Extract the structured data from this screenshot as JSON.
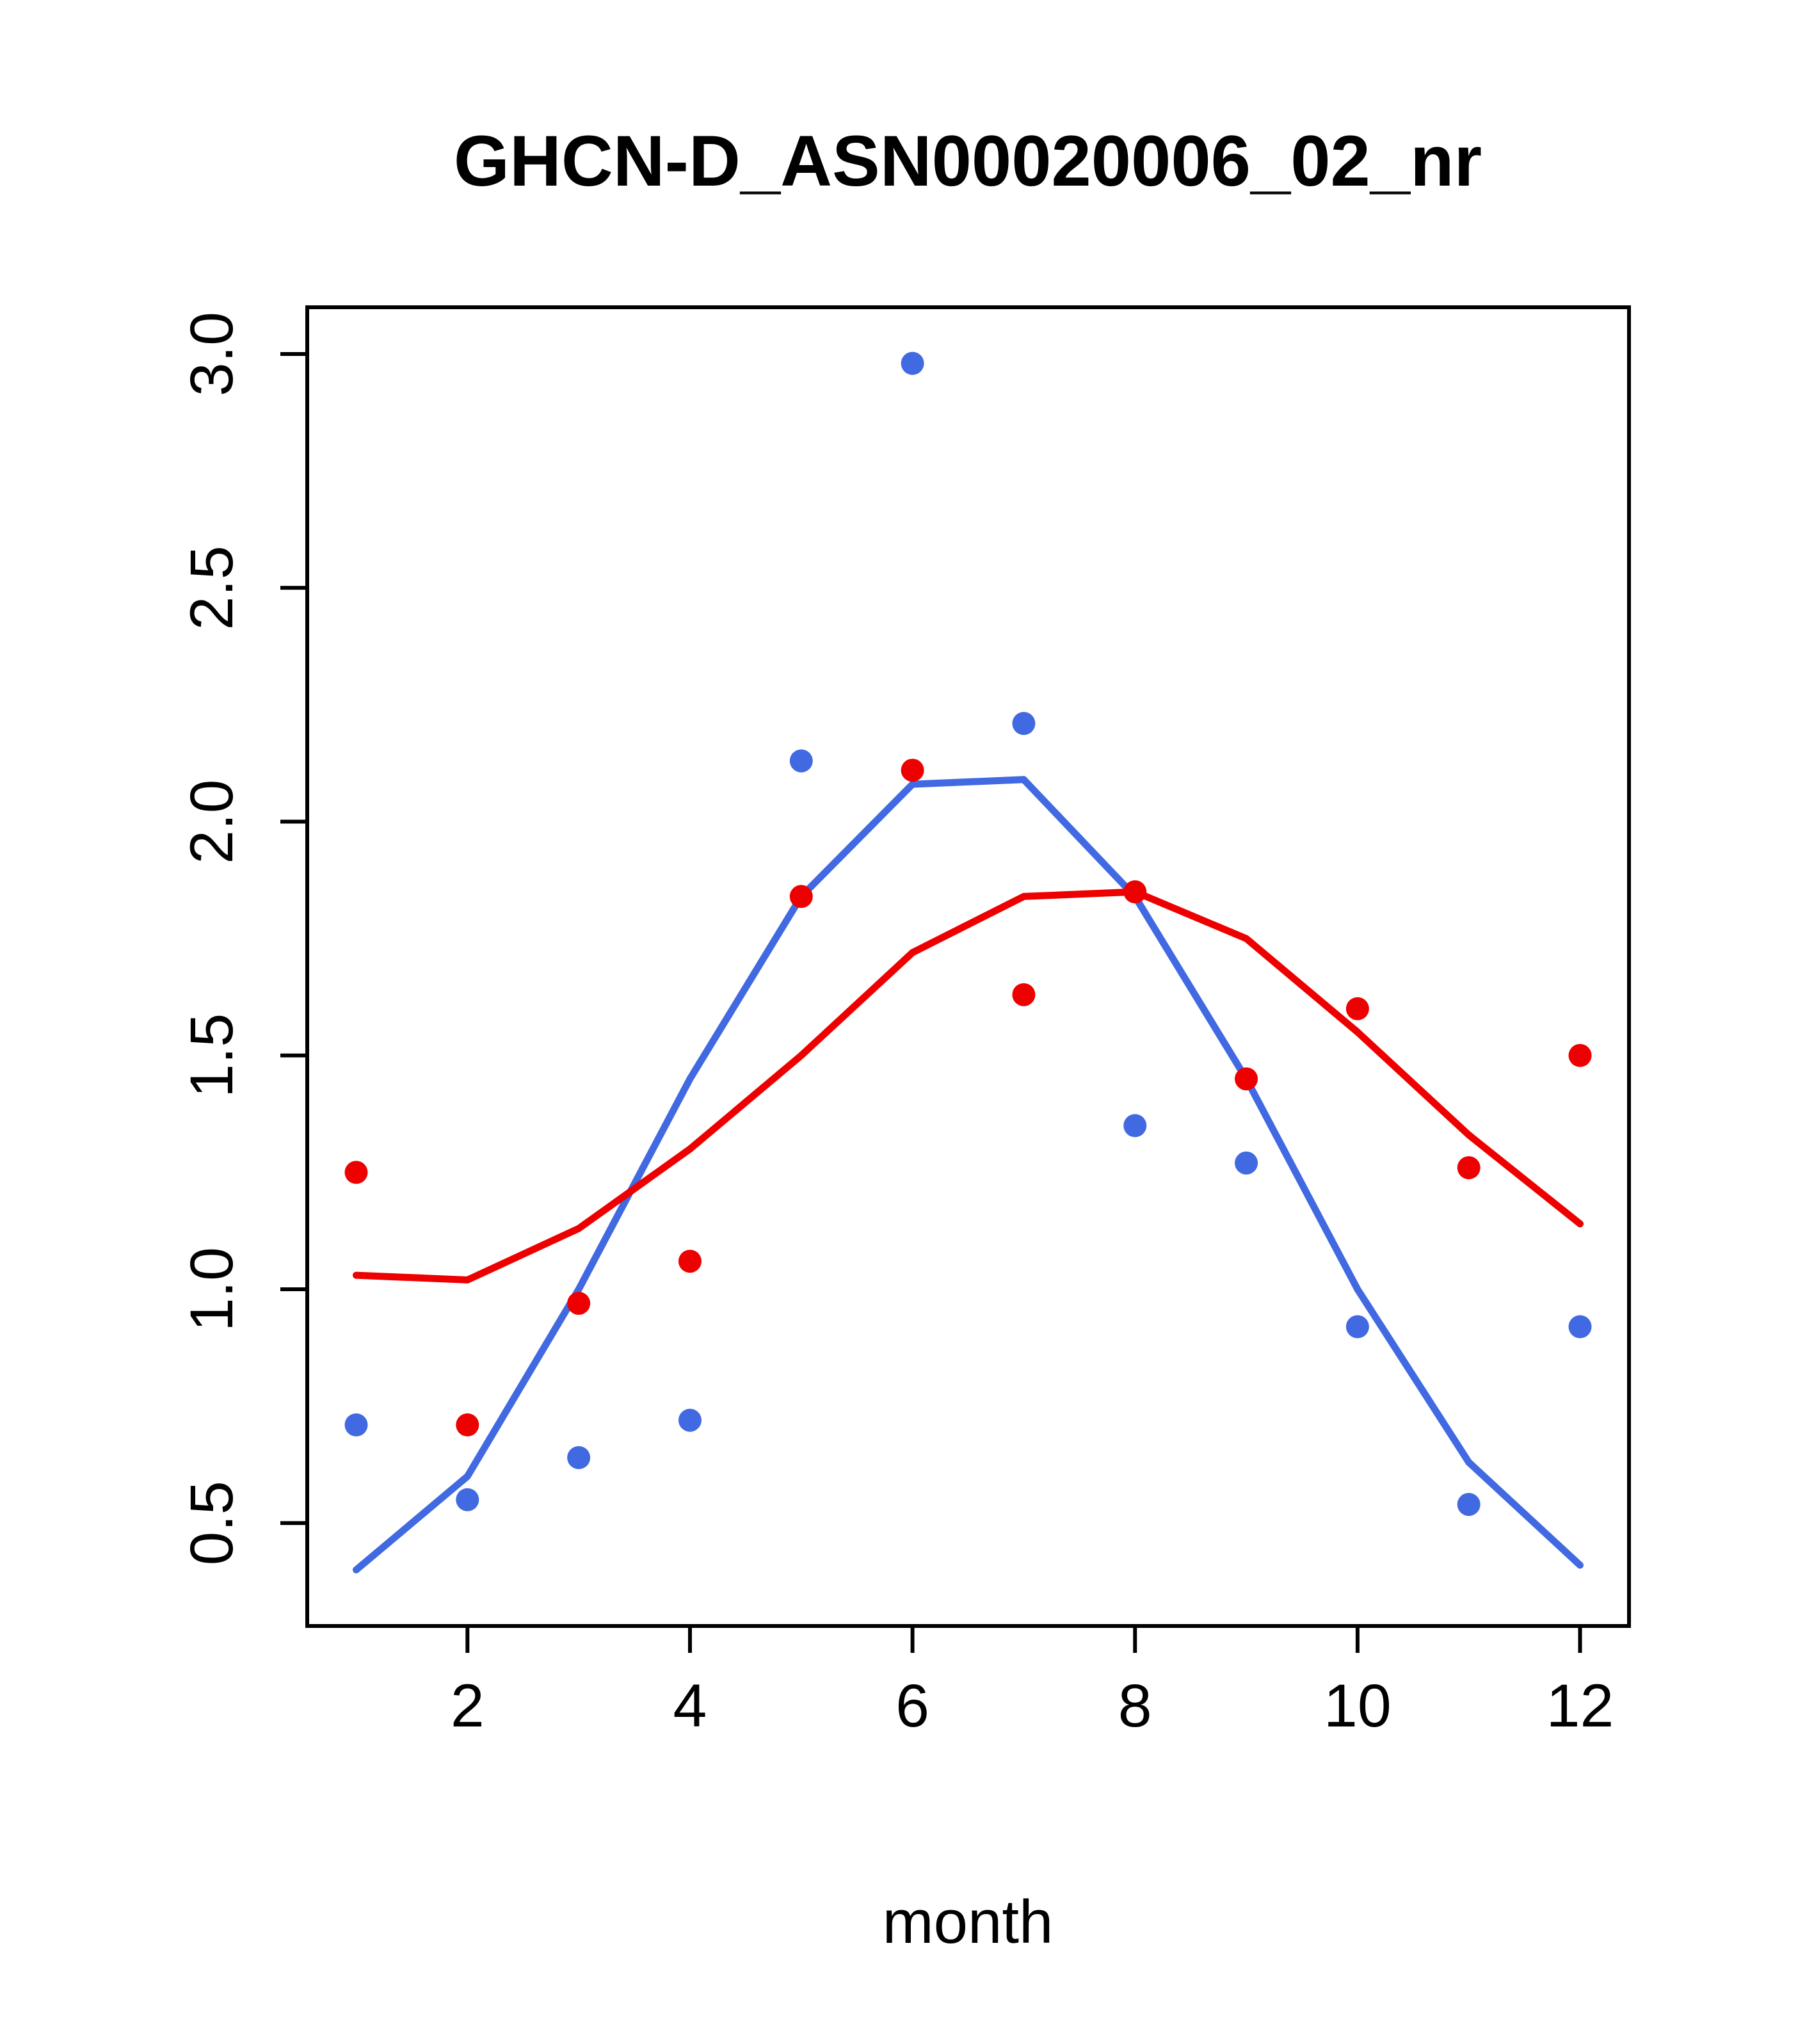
{
  "page": {
    "background": "#ffffff"
  },
  "chart_data": {
    "type": "scatter",
    "title": "GHCN-D_ASN00020006_02_nr",
    "xlabel": "month",
    "ylabel": "",
    "grid": false,
    "legend": "none",
    "xlim": [
      0.56,
      12.44
    ],
    "ylim": [
      0.28,
      3.1
    ],
    "x_ticks": [
      2,
      4,
      6,
      8,
      10,
      12
    ],
    "y_ticks": [
      0.5,
      1.0,
      1.5,
      2.0,
      2.5,
      3.0
    ],
    "x": [
      1,
      2,
      3,
      4,
      5,
      6,
      7,
      8,
      9,
      10,
      11,
      12
    ],
    "colors": {
      "blue": "#4169E1",
      "red": "#EE0000",
      "axis": "#000000"
    },
    "series": [
      {
        "name": "blue-smooth-line",
        "kind": "line",
        "color_key": "blue",
        "values": [
          0.4,
          0.6,
          1.0,
          1.45,
          1.84,
          2.08,
          2.09,
          1.84,
          1.45,
          1.0,
          0.63,
          0.41
        ]
      },
      {
        "name": "red-smooth-line",
        "kind": "line",
        "color_key": "red",
        "values": [
          1.03,
          1.02,
          1.13,
          1.3,
          1.5,
          1.72,
          1.84,
          1.85,
          1.75,
          1.55,
          1.33,
          1.14
        ]
      },
      {
        "name": "blue-points",
        "kind": "points",
        "color_key": "blue",
        "values": [
          0.71,
          0.55,
          0.64,
          0.72,
          2.13,
          2.98,
          2.21,
          1.35,
          1.27,
          0.92,
          0.54,
          0.92
        ]
      },
      {
        "name": "red-points",
        "kind": "points",
        "color_key": "red",
        "values": [
          1.25,
          0.71,
          0.97,
          1.06,
          1.84,
          2.11,
          1.63,
          1.85,
          1.45,
          1.6,
          1.26,
          1.5
        ]
      }
    ]
  }
}
